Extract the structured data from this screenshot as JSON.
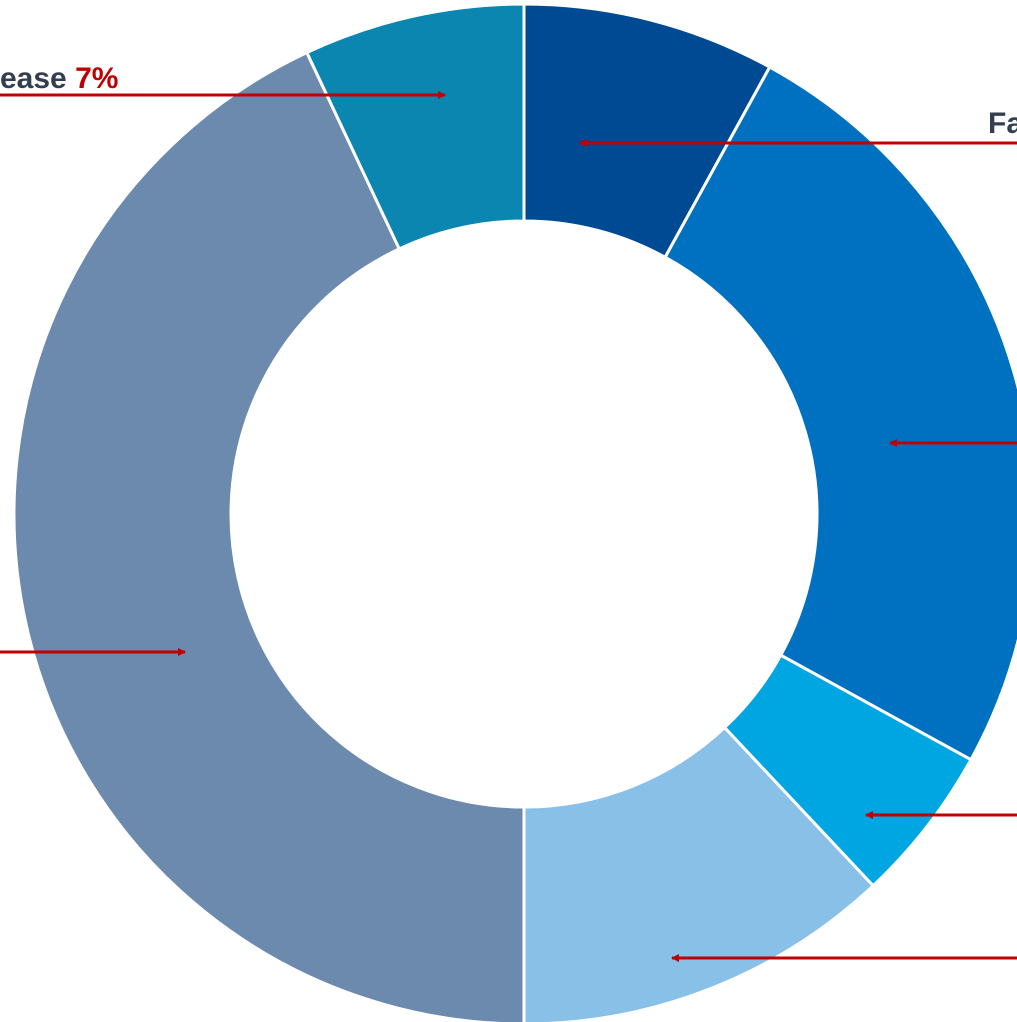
{
  "chart_data": {
    "type": "pie",
    "categories": [
      "Fa",
      null,
      null,
      null,
      null,
      "ease"
    ],
    "values": [
      8,
      25,
      5,
      12,
      43,
      7
    ],
    "value_labels": [
      null,
      null,
      null,
      null,
      null,
      "7%"
    ],
    "colors": [
      "#004a93",
      "#0070c0",
      "#00a6e2",
      "#88c0e8",
      "#6c8aad",
      "#0a86b0"
    ]
  }
}
